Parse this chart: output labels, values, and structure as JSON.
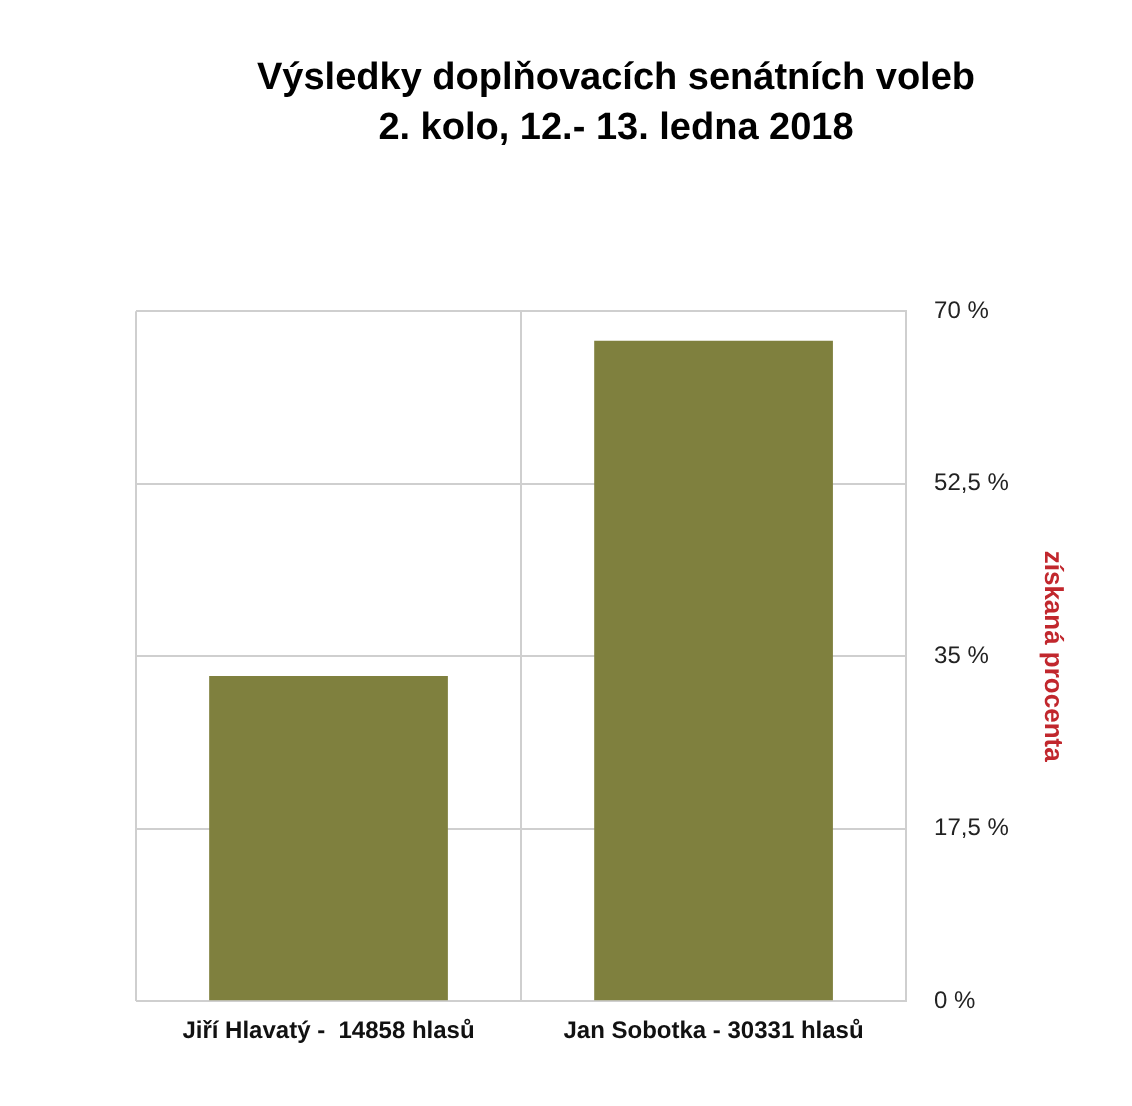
{
  "chart_data": {
    "type": "bar",
    "title": "Výsledky doplňovacích senátních voleb",
    "subtitle": "2. kolo, 12.- 13. ledna 2018",
    "categories": [
      "Jiří Hlavatý -  14858 hlasů",
      "Jan Sobotka - 30331 hlasů"
    ],
    "series": [
      {
        "color": "#7f803e",
        "values": [
          33,
          67
        ],
        "axis": "y2"
      }
    ],
    "y2label": "získaná procenta",
    "y2lim": [
      0,
      70
    ],
    "y2ticks": [
      {
        "value": 0,
        "label": "0 %"
      },
      {
        "value": 17.5,
        "label": "17,5 %"
      },
      {
        "value": 35,
        "label": "35 %"
      },
      {
        "value": 52.5,
        "label": "52,5 %"
      },
      {
        "value": 70,
        "label": "70 %"
      }
    ],
    "grid": true,
    "legend": false
  }
}
